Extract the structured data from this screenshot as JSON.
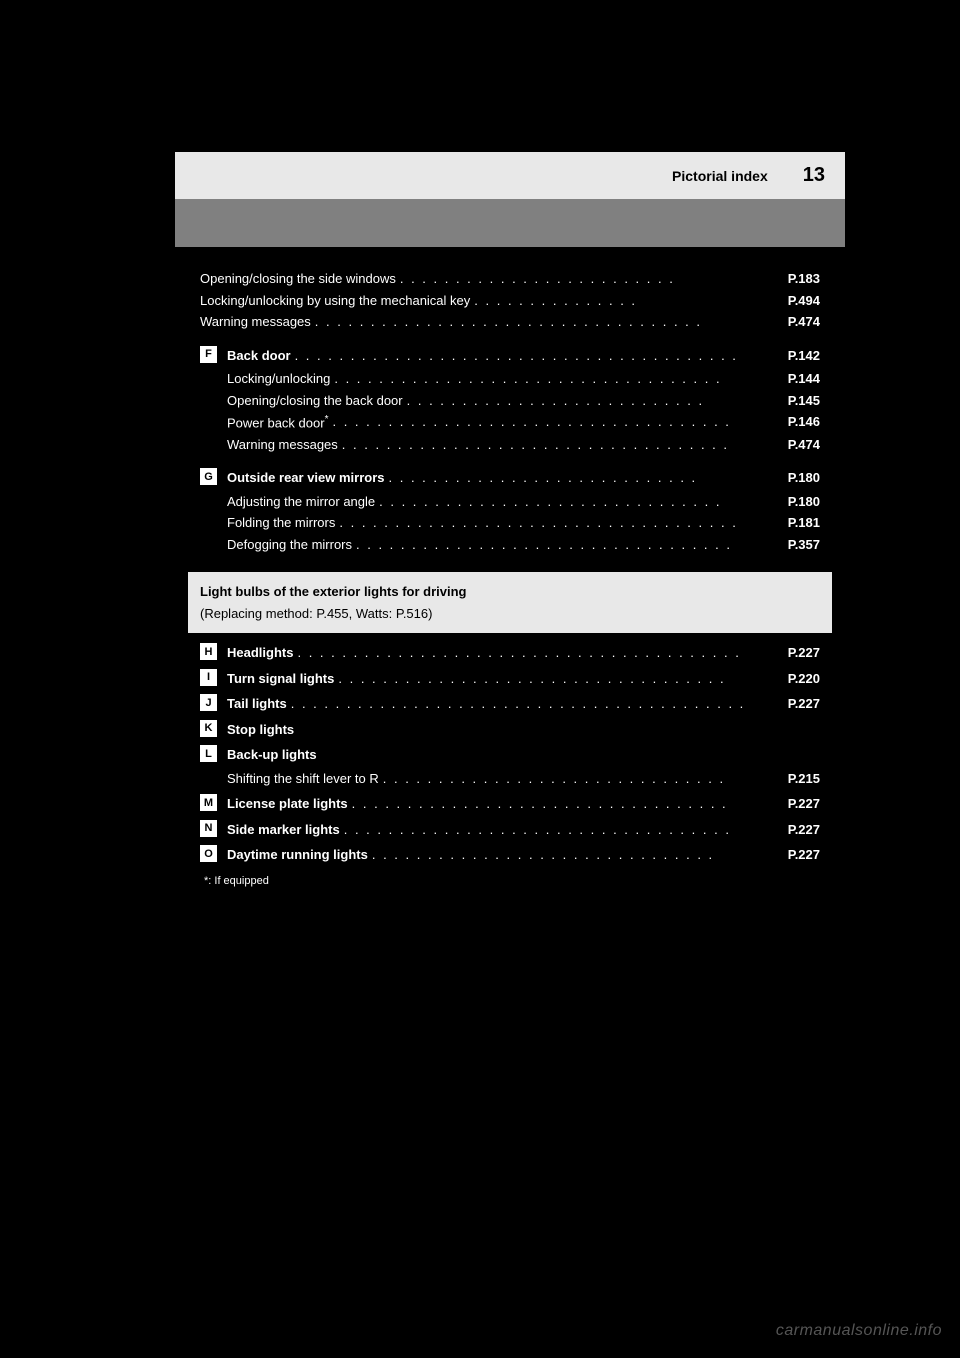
{
  "colors": {
    "page_bg": "#000000",
    "header_bg": "#e8e8e8",
    "gray_bar": "#808080",
    "text_white": "#ffffff",
    "text_black": "#000000",
    "callout_bg": "#e8e8e8",
    "watermark": "#555555"
  },
  "header": {
    "label": "Pictorial index",
    "page_number": "13"
  },
  "pre_entries": [
    {
      "sub_lines": [
        {
          "label": "Opening/closing the side windows",
          "page": "P.183"
        },
        {
          "label": "Locking/unlocking by using the mechanical key",
          "page": "P.494"
        },
        {
          "label": "Warning messages",
          "page": "P.474"
        }
      ]
    }
  ],
  "main_entries": [
    {
      "letter": "F",
      "label": "Back door",
      "page": "P.142",
      "sub_lines": [
        {
          "label": "Locking/unlocking",
          "page": "P.144"
        },
        {
          "label": "Opening/closing the back door",
          "page": "P.145"
        },
        {
          "label": "Power back door",
          "page": "P.146"
        },
        {
          "label": "Warning messages",
          "page": "P.474"
        }
      ]
    },
    {
      "letter": "G",
      "label": "Outside rear view mirrors",
      "page": "P.180",
      "sub_lines": [
        {
          "label": "Adjusting the mirror angle",
          "page": "P.180"
        },
        {
          "label": "Folding the mirrors",
          "page": "P.181"
        },
        {
          "label": "Defogging the mirrors",
          "page": "P.357"
        }
      ]
    }
  ],
  "callout": {
    "title": "Light bulbs of the exterior lights for driving",
    "subtitle": "(Replacing method: P.455, Watts: P.516)"
  },
  "light_entries": [
    {
      "letter": "H",
      "label": "Headlights",
      "page": "P.227"
    },
    {
      "letter": "I",
      "label": "Turn signal lights",
      "page": "P.220"
    },
    {
      "letter": "J",
      "label": "Tail lights",
      "page": "P.227"
    },
    {
      "letter": "K",
      "label": "Stop lights"
    },
    {
      "letter": "L",
      "label": "Back-up lights",
      "sub_note": "Shifting the shift lever to R",
      "page": "P.215"
    },
    {
      "letter": "M",
      "label": "License plate lights",
      "page": "P.227"
    },
    {
      "letter": "N",
      "label": "Side marker lights",
      "page": "P.227"
    },
    {
      "letter": "O",
      "label": "Daytime running lights",
      "page": "P.227"
    }
  ],
  "footnote": "*: If equipped",
  "watermark": "carmanualsonline.info"
}
